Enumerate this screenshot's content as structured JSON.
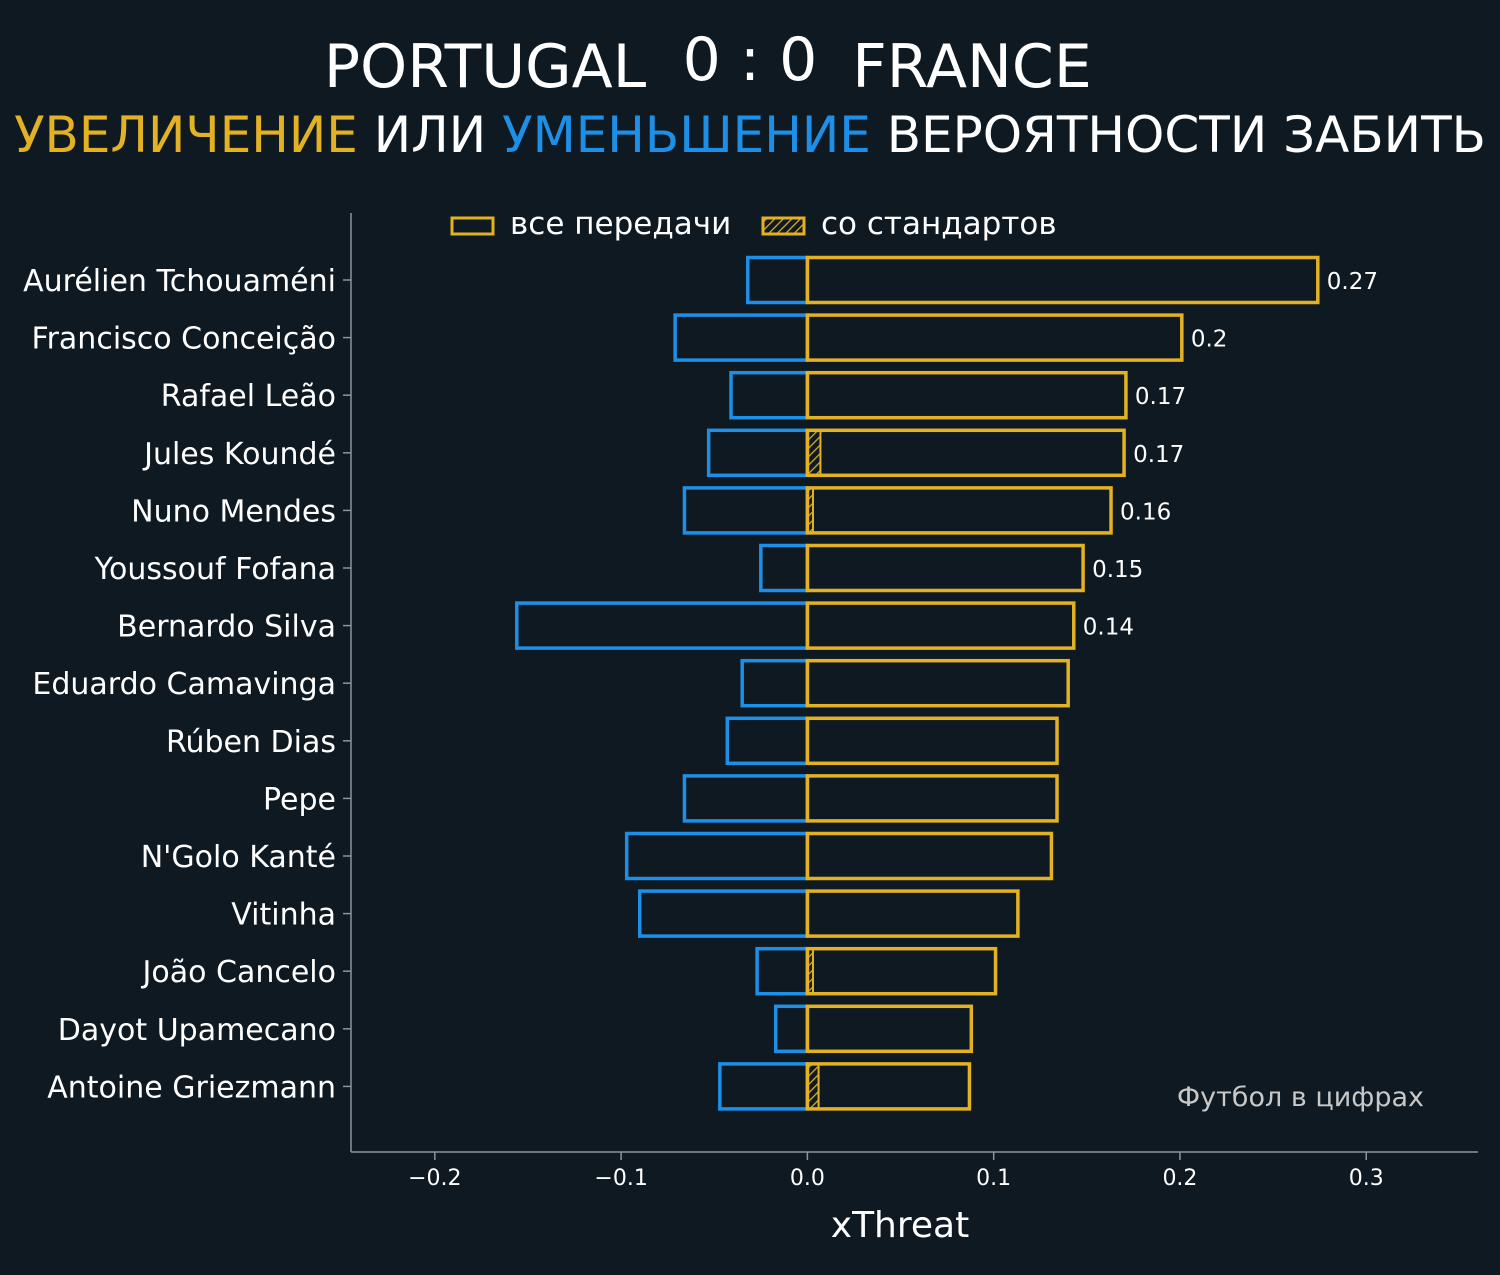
{
  "header": {
    "home_team": "PORTUGAL",
    "score": "0 : 0",
    "away_team": "FRANCE",
    "subtitle_part1": "УВЕЛИЧЕНИЕ",
    "subtitle_part2": " ИЛИ ",
    "subtitle_part3": "УМЕНЬШЕНИЕ",
    "subtitle_part4": " ВЕРОЯТНОСТИ ЗАБИТЬ"
  },
  "legend": {
    "all_passes": "все передачи",
    "set_pieces": "со стандартов"
  },
  "watermark": "Футбол в цифрах",
  "colors": {
    "background": "#0f1921",
    "increase": "#e2b124",
    "decrease": "#1e8fe6",
    "axis": "#8a959c",
    "text": "#ffffff"
  },
  "chart_data": {
    "type": "bar",
    "orientation": "horizontal",
    "xlabel": "xThreat",
    "xlim": [
      -0.245,
      0.36
    ],
    "xticks": [
      -0.2,
      -0.1,
      0.0,
      0.1,
      0.2,
      0.3
    ],
    "xtick_labels": [
      "−0.2",
      "−0.1",
      "0.0",
      "0.1",
      "0.2",
      "0.3"
    ],
    "grid": false,
    "legend_position": "top",
    "categories": [
      "Aurélien Tchouaméni",
      "Francisco Conceição",
      "Rafael Leão",
      "Jules Koundé",
      "Nuno Mendes",
      "Youssouf Fofana",
      "Bernardo Silva",
      "Eduardo Camavinga",
      "Rúben Dias",
      "Pepe",
      "N'Golo Kanté",
      "Vitinha",
      "João Cancelo",
      "Dayot Upamecano",
      "Antoine Griezmann"
    ],
    "series": [
      {
        "name": "все передачи",
        "role": "increase",
        "values": [
          0.274,
          0.201,
          0.171,
          0.17,
          0.163,
          0.148,
          0.143,
          0.14,
          0.134,
          0.134,
          0.131,
          0.113,
          0.101,
          0.088,
          0.087
        ]
      },
      {
        "name": "со стандартов",
        "role": "increase-set-pieces",
        "values": [
          0,
          0,
          0,
          0.007,
          0.003,
          0,
          0,
          0,
          0,
          0,
          0,
          0,
          0.003,
          0,
          0.006
        ]
      },
      {
        "role": "decrease",
        "values": [
          -0.032,
          -0.071,
          -0.041,
          -0.053,
          -0.066,
          -0.025,
          -0.156,
          -0.035,
          -0.043,
          -0.066,
          -0.097,
          -0.09,
          -0.027,
          -0.017,
          -0.047
        ]
      }
    ],
    "value_labels": [
      "0.27",
      "0.2",
      "0.17",
      "0.17",
      "0.16",
      "0.15",
      "0.14",
      "",
      "",
      "",
      "",
      "",
      "",
      "",
      ""
    ]
  }
}
